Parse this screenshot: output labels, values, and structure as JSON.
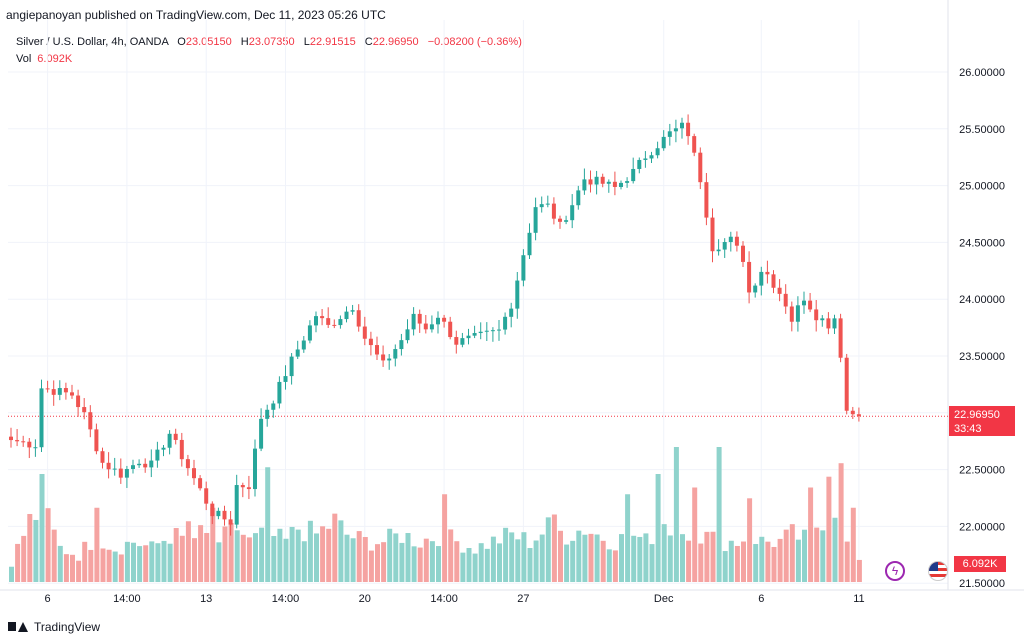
{
  "header": {
    "text": "angiepanoyan published on TradingView.com, Dec 11, 2023 05:26 UTC"
  },
  "legend": {
    "symbol": "Silver / U.S. Dollar, 4h, OANDA",
    "o_label": "O",
    "o_value": "23.05150",
    "h_label": "H",
    "h_value": "23.07350",
    "l_label": "L",
    "l_value": "22.91515",
    "c_label": "C",
    "c_value": "22.96950",
    "change": "−0.08200 (−0.36%)",
    "vol_label": "Vol",
    "vol_value": "6.092K"
  },
  "price_tag": {
    "price": "22.96950",
    "countdown": "33:43"
  },
  "vol_tag": "6.092K",
  "footer": {
    "brand": "TradingView"
  },
  "colors": {
    "up": "#26a69a",
    "down": "#ef5350",
    "vol_up": "#8fd3cc",
    "vol_down": "#f5a3a1",
    "grid": "#f0f3fa",
    "last_price": "#f23645"
  },
  "chart_data": {
    "type": "candlestick",
    "title": "Silver / U.S. Dollar, 4h, OANDA",
    "y_ticks": [
      "26.00000",
      "25.50000",
      "25.00000",
      "24.50000",
      "24.00000",
      "23.50000",
      "23.00000",
      "22.50000",
      "22.00000",
      "21.50000"
    ],
    "ylim": [
      21.5,
      26.2
    ],
    "x_ticks": [
      {
        "label": "6",
        "bar": 6
      },
      {
        "label": "14:00",
        "bar": 19
      },
      {
        "label": "13",
        "bar": 32
      },
      {
        "label": "14:00",
        "bar": 45
      },
      {
        "label": "20",
        "bar": 58
      },
      {
        "label": "14:00",
        "bar": 71
      },
      {
        "label": "27",
        "bar": 84
      },
      {
        "label": "Dec",
        "bar": 107
      },
      {
        "label": "6",
        "bar": 123
      },
      {
        "label": "11",
        "bar": 139
      }
    ],
    "last_price": 22.9695,
    "close_anchors": [
      [
        0,
        22.76
      ],
      [
        4,
        22.72
      ],
      [
        5,
        23.22
      ],
      [
        10,
        23.16
      ],
      [
        12,
        22.98
      ],
      [
        15,
        22.56
      ],
      [
        18,
        22.46
      ],
      [
        21,
        22.58
      ],
      [
        23,
        22.54
      ],
      [
        26,
        22.82
      ],
      [
        28,
        22.62
      ],
      [
        33,
        22.12
      ],
      [
        36,
        22.04
      ],
      [
        37,
        22.36
      ],
      [
        39,
        22.36
      ],
      [
        41,
        22.96
      ],
      [
        43,
        23.12
      ],
      [
        46,
        23.46
      ],
      [
        50,
        23.86
      ],
      [
        52,
        23.76
      ],
      [
        56,
        23.94
      ],
      [
        58,
        23.66
      ],
      [
        61,
        23.42
      ],
      [
        64,
        23.64
      ],
      [
        66,
        23.84
      ],
      [
        68,
        23.74
      ],
      [
        70,
        23.86
      ],
      [
        73,
        23.62
      ],
      [
        76,
        23.66
      ],
      [
        80,
        23.72
      ],
      [
        82,
        23.96
      ],
      [
        84,
        24.4
      ],
      [
        86,
        24.82
      ],
      [
        88,
        24.82
      ],
      [
        90,
        24.64
      ],
      [
        92,
        24.84
      ],
      [
        94,
        25.06
      ],
      [
        97,
        25.02
      ],
      [
        99,
        24.98
      ],
      [
        102,
        25.12
      ],
      [
        104,
        25.26
      ],
      [
        106,
        25.36
      ],
      [
        108,
        25.46
      ],
      [
        110,
        25.52
      ],
      [
        111,
        25.46
      ],
      [
        113,
        25.06
      ],
      [
        115,
        24.46
      ],
      [
        118,
        24.52
      ],
      [
        120,
        24.36
      ],
      [
        121,
        24.06
      ],
      [
        123,
        24.26
      ],
      [
        124,
        24.22
      ],
      [
        126,
        24.06
      ],
      [
        127,
        23.96
      ],
      [
        128,
        23.82
      ],
      [
        130,
        24.02
      ],
      [
        132,
        23.86
      ],
      [
        134,
        23.78
      ],
      [
        135,
        23.84
      ],
      [
        136,
        23.52
      ],
      [
        137,
        23.02
      ],
      [
        139,
        22.97
      ]
    ],
    "volume_anchors": [
      [
        0,
        0.15
      ],
      [
        3,
        0.45
      ],
      [
        5,
        0.55
      ],
      [
        8,
        0.25
      ],
      [
        11,
        0.2
      ],
      [
        14,
        0.35
      ],
      [
        17,
        0.25
      ],
      [
        20,
        0.3
      ],
      [
        23,
        0.25
      ],
      [
        26,
        0.35
      ],
      [
        29,
        0.3
      ],
      [
        31,
        0.35
      ],
      [
        34,
        0.3
      ],
      [
        37,
        0.4
      ],
      [
        39,
        0.3
      ],
      [
        42,
        0.35
      ],
      [
        45,
        0.3
      ],
      [
        47,
        0.4
      ],
      [
        50,
        0.35
      ],
      [
        53,
        0.45
      ],
      [
        55,
        0.35
      ],
      [
        58,
        0.3
      ],
      [
        61,
        0.3
      ],
      [
        64,
        0.35
      ],
      [
        67,
        0.3
      ],
      [
        70,
        0.35
      ],
      [
        73,
        0.3
      ],
      [
        76,
        0.25
      ],
      [
        79,
        0.3
      ],
      [
        82,
        0.35
      ],
      [
        85,
        0.3
      ],
      [
        88,
        0.4
      ],
      [
        91,
        0.35
      ],
      [
        94,
        0.4
      ],
      [
        96,
        0.35
      ],
      [
        99,
        0.3
      ],
      [
        102,
        0.35
      ],
      [
        104,
        0.3
      ],
      [
        107,
        0.45
      ],
      [
        109,
        0.35
      ],
      [
        111,
        0.4
      ],
      [
        113,
        0.35
      ],
      [
        116,
        0.3
      ],
      [
        119,
        0.3
      ],
      [
        121,
        0.35
      ],
      [
        123,
        0.3
      ],
      [
        126,
        0.3
      ],
      [
        128,
        0.35
      ],
      [
        131,
        0.3
      ],
      [
        133,
        0.4
      ],
      [
        135,
        0.6
      ],
      [
        137,
        0.35
      ],
      [
        139,
        0.2
      ]
    ],
    "volume_spikes": [
      [
        5,
        0.8
      ],
      [
        14,
        0.55
      ],
      [
        29,
        0.45
      ],
      [
        33,
        0.55
      ],
      [
        42,
        0.85
      ],
      [
        71,
        0.65
      ],
      [
        89,
        0.5
      ],
      [
        101,
        0.65
      ],
      [
        106,
        0.8
      ],
      [
        109,
        1.0
      ],
      [
        112,
        0.7
      ],
      [
        116,
        1.0
      ],
      [
        121,
        0.62
      ],
      [
        131,
        0.7
      ],
      [
        134,
        0.78
      ],
      [
        136,
        0.88
      ],
      [
        138,
        0.55
      ]
    ]
  }
}
